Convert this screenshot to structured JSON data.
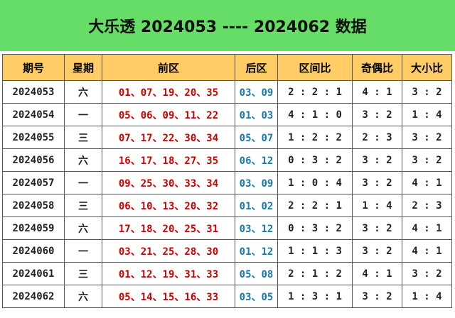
{
  "header": {
    "title": "大乐透 2024053 ---- 2024062 数据"
  },
  "table": {
    "header": [
      "期号",
      "星期",
      "前区",
      "后区",
      "区间比",
      "奇偶比",
      "大小比"
    ],
    "rows": [
      [
        "2024053",
        "六",
        "01、07、19、20、35",
        "03、09",
        "2 : 2 : 1",
        "4 : 1",
        "3 : 2"
      ],
      [
        "2024054",
        "一",
        "05、06、09、11、22",
        "01、03",
        "4 : 1 : 0",
        "3 : 2",
        "1 : 4"
      ],
      [
        "2024055",
        "三",
        "07、17、22、30、34",
        "05、07",
        "1 : 2 : 2",
        "2 : 3",
        "3 : 2"
      ],
      [
        "2024056",
        "六",
        "16、17、18、27、35",
        "06、12",
        "0 : 3 : 2",
        "3 : 2",
        "3 : 2"
      ],
      [
        "2024057",
        "一",
        "09、25、30、33、34",
        "03、09",
        "1 : 0 : 4",
        "3 : 2",
        "4 : 1"
      ],
      [
        "2024058",
        "三",
        "06、10、13、20、32",
        "01、02",
        "2 : 2 : 1",
        "1 : 4",
        "2 : 3"
      ],
      [
        "2024059",
        "六",
        "17、18、20、25、31",
        "03、12",
        "0 : 3 : 2",
        "3 : 2",
        "4 : 1"
      ],
      [
        "2024060",
        "一",
        "03、21、25、28、30",
        "01、12",
        "1 : 1 : 3",
        "3 : 2",
        "4 : 1"
      ],
      [
        "2024061",
        "三",
        "01、12、19、31、33",
        "05、08",
        "2 : 1 : 2",
        "4 : 1",
        "3 : 2"
      ],
      [
        "2024062",
        "六",
        "05、14、15、16、33",
        "03、05",
        "1 : 3 : 1",
        "3 : 2",
        "1 : 4"
      ]
    ]
  }
}
